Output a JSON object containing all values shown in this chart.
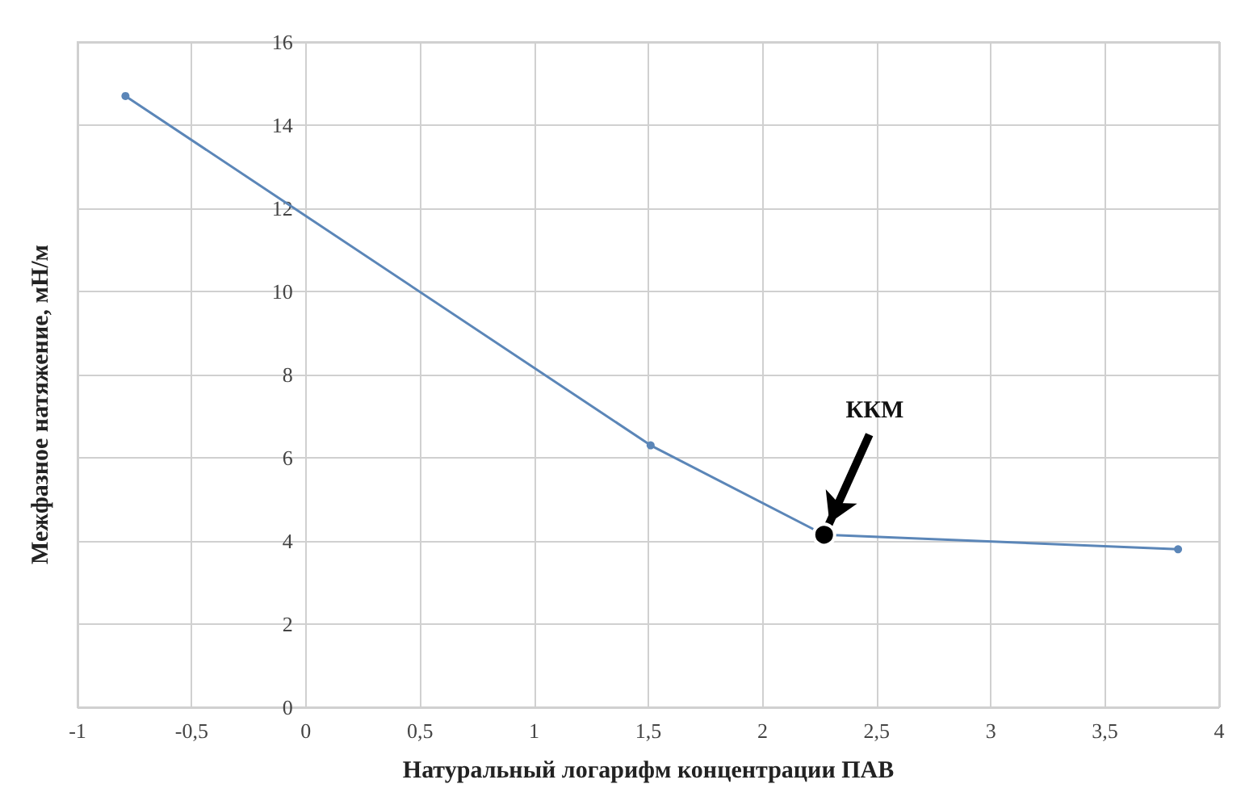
{
  "chart_data": {
    "type": "line",
    "xlabel": "Натуральный логарифм концентрации ПАВ",
    "ylabel": "Межфазное натяжение, мН/м",
    "x": [
      -0.79,
      1.51,
      2.27,
      3.82
    ],
    "series": [
      {
        "color": "#5b86b8",
        "values": [
          14.7,
          6.3,
          4.15,
          3.8
        ]
      }
    ],
    "xlim": [
      -1,
      4
    ],
    "xticks": [
      {
        "value": -1,
        "label": "-1"
      },
      {
        "value": -0.5,
        "label": "-0,5"
      },
      {
        "value": 0,
        "label": "0"
      },
      {
        "value": 0.5,
        "label": "0,5"
      },
      {
        "value": 1,
        "label": "1"
      },
      {
        "value": 1.5,
        "label": "1,5"
      },
      {
        "value": 2,
        "label": "2"
      },
      {
        "value": 2.5,
        "label": "2,5"
      },
      {
        "value": 3,
        "label": "3"
      },
      {
        "value": 3.5,
        "label": "3,5"
      },
      {
        "value": 4,
        "label": "4"
      }
    ],
    "ylim": [
      0,
      16
    ],
    "yticks": [
      0,
      2,
      4,
      6,
      8,
      10,
      12,
      14,
      16
    ],
    "annotations": [
      {
        "text": "ККМ",
        "x": 2.27,
        "y": 4.15
      }
    ],
    "grid": true,
    "marker": "circle",
    "line_style": "solid"
  }
}
